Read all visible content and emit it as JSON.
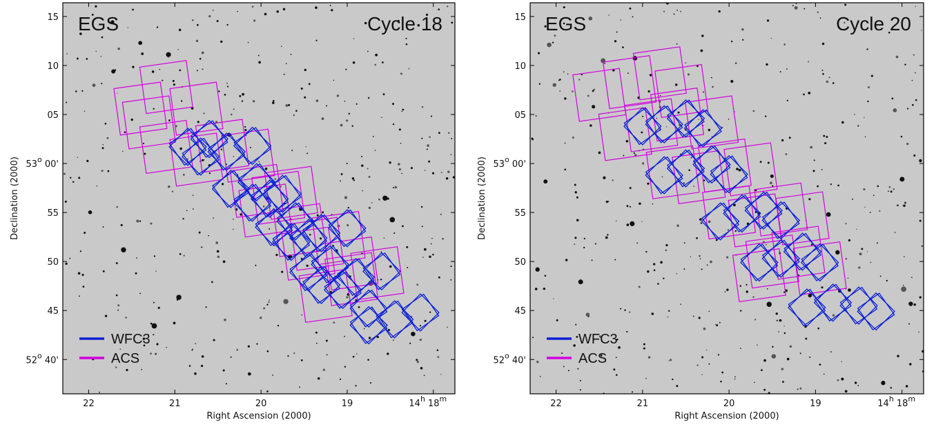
{
  "legend_style": {
    "WFC3": "#0a1fd6",
    "ACS": "#d200e0"
  },
  "chart_data": [
    {
      "type": "scatter",
      "field": "EGS",
      "cycle": "Cycle 18",
      "xlabel": "Right Ascension (2000)",
      "ylabel": "Declination (2000)",
      "xlim": [
        22.3,
        17.75
      ],
      "ylim": [
        36.5,
        16.4
      ],
      "x_ticks": [
        "22",
        "21",
        "20",
        "19",
        "14h 18m"
      ],
      "y_ticks": [
        "15",
        "10",
        "05",
        "53° 00'",
        "55",
        "50",
        "45",
        "52° 40'"
      ],
      "legend": [
        "WFC3",
        "ACS"
      ],
      "grid": false,
      "legend_position": "bottom-left",
      "series": [
        {
          "name": "ACS",
          "points": [
            {
              "x": 21.4,
              "y": 5.6
            },
            {
              "x": 21.1,
              "y": 7.8
            },
            {
              "x": 20.75,
              "y": 5.6
            },
            {
              "x": 21.3,
              "y": 4.2
            },
            {
              "x": 21.1,
              "y": 1.7
            },
            {
              "x": 20.75,
              "y": 0.4
            },
            {
              "x": 20.45,
              "y": 1.8
            },
            {
              "x": 20.15,
              "y": 0.8
            },
            {
              "x": 20.05,
              "y": 57.2
            },
            {
              "x": 19.8,
              "y": 56.5
            },
            {
              "x": 19.65,
              "y": 57.0
            },
            {
              "x": 19.95,
              "y": 55.2
            },
            {
              "x": 19.55,
              "y": 53.2
            },
            {
              "x": 19.35,
              "y": 51.8
            },
            {
              "x": 19.1,
              "y": 52.4
            },
            {
              "x": 19.45,
              "y": 50.8
            },
            {
              "x": 18.95,
              "y": 49.8
            },
            {
              "x": 18.65,
              "y": 48.8
            },
            {
              "x": 18.95,
              "y": 48.2
            },
            {
              "x": 19.25,
              "y": 46.5
            }
          ]
        },
        {
          "name": "WFC3",
          "points": [
            {
              "x": 20.85,
              "y": 1.7
            },
            {
              "x": 20.6,
              "y": 2.5
            },
            {
              "x": 20.4,
              "y": 1.2
            },
            {
              "x": 20.1,
              "y": 1.8
            },
            {
              "x": 20.7,
              "y": 0.7
            },
            {
              "x": 20.35,
              "y": 57.4
            },
            {
              "x": 20.05,
              "y": 58.1
            },
            {
              "x": 19.75,
              "y": 56.9
            },
            {
              "x": 20.1,
              "y": 56.0
            },
            {
              "x": 19.9,
              "y": 56.4
            },
            {
              "x": 19.85,
              "y": 53.5
            },
            {
              "x": 19.6,
              "y": 54.1
            },
            {
              "x": 19.3,
              "y": 52.9
            },
            {
              "x": 19.0,
              "y": 53.4
            },
            {
              "x": 19.65,
              "y": 52.0
            },
            {
              "x": 19.45,
              "y": 52.4
            },
            {
              "x": 19.45,
              "y": 48.9
            },
            {
              "x": 19.2,
              "y": 49.7
            },
            {
              "x": 18.9,
              "y": 48.4
            },
            {
              "x": 18.6,
              "y": 49.0
            },
            {
              "x": 19.3,
              "y": 47.6
            },
            {
              "x": 19.05,
              "y": 47.1
            },
            {
              "x": 18.75,
              "y": 45.2
            },
            {
              "x": 18.45,
              "y": 44.1
            },
            {
              "x": 18.15,
              "y": 44.8
            },
            {
              "x": 18.75,
              "y": 43.5
            }
          ]
        }
      ]
    },
    {
      "type": "scatter",
      "field": "EGS",
      "cycle": "Cycle 20",
      "xlabel": "Right Ascension (2000)",
      "ylabel": "Declination (2000)",
      "xlim": [
        22.3,
        17.75
      ],
      "ylim": [
        36.5,
        16.4
      ],
      "x_ticks": [
        "22",
        "21",
        "20",
        "19",
        "14h 18m"
      ],
      "y_ticks": [
        "15",
        "10",
        "05",
        "53° 00'",
        "55",
        "50",
        "45",
        "52° 40'"
      ],
      "legend": [
        "WFC3",
        "ACS"
      ],
      "grid": false,
      "legend_position": "bottom-left",
      "series": [
        {
          "name": "ACS",
          "points": [
            {
              "x": 21.5,
              "y": 7.0
            },
            {
              "x": 21.15,
              "y": 8.3
            },
            {
              "x": 20.8,
              "y": 9.2
            },
            {
              "x": 20.55,
              "y": 7.4
            },
            {
              "x": 21.2,
              "y": 3.0
            },
            {
              "x": 20.9,
              "y": 3.9
            },
            {
              "x": 20.6,
              "y": 5.0
            },
            {
              "x": 20.2,
              "y": 4.2
            },
            {
              "x": 20.65,
              "y": 59.1
            },
            {
              "x": 20.35,
              "y": 58.6
            },
            {
              "x": 20.05,
              "y": 59.8
            },
            {
              "x": 19.75,
              "y": 59.4
            },
            {
              "x": 20.0,
              "y": 55.0
            },
            {
              "x": 19.7,
              "y": 54.2
            },
            {
              "x": 19.4,
              "y": 55.3
            },
            {
              "x": 19.15,
              "y": 54.4
            },
            {
              "x": 19.5,
              "y": 50.0
            },
            {
              "x": 19.2,
              "y": 50.9
            },
            {
              "x": 18.95,
              "y": 49.3
            },
            {
              "x": 19.65,
              "y": 48.6
            }
          ]
        },
        {
          "name": "WFC3",
          "points": [
            {
              "x": 21.0,
              "y": 3.8
            },
            {
              "x": 20.75,
              "y": 4.0
            },
            {
              "x": 20.5,
              "y": 4.6
            },
            {
              "x": 20.3,
              "y": 3.6
            },
            {
              "x": 20.75,
              "y": 58.8
            },
            {
              "x": 20.5,
              "y": 59.5
            },
            {
              "x": 20.2,
              "y": 59.9
            },
            {
              "x": 20.0,
              "y": 58.9
            },
            {
              "x": 20.1,
              "y": 54.1
            },
            {
              "x": 19.85,
              "y": 54.9
            },
            {
              "x": 19.6,
              "y": 55.2
            },
            {
              "x": 19.4,
              "y": 54.2
            },
            {
              "x": 19.65,
              "y": 49.9
            },
            {
              "x": 19.4,
              "y": 50.3
            },
            {
              "x": 19.15,
              "y": 51.0
            },
            {
              "x": 18.95,
              "y": 49.9
            },
            {
              "x": 19.1,
              "y": 45.3
            },
            {
              "x": 18.8,
              "y": 45.8
            },
            {
              "x": 18.5,
              "y": 45.5
            },
            {
              "x": 18.3,
              "y": 44.9
            }
          ]
        }
      ]
    }
  ]
}
